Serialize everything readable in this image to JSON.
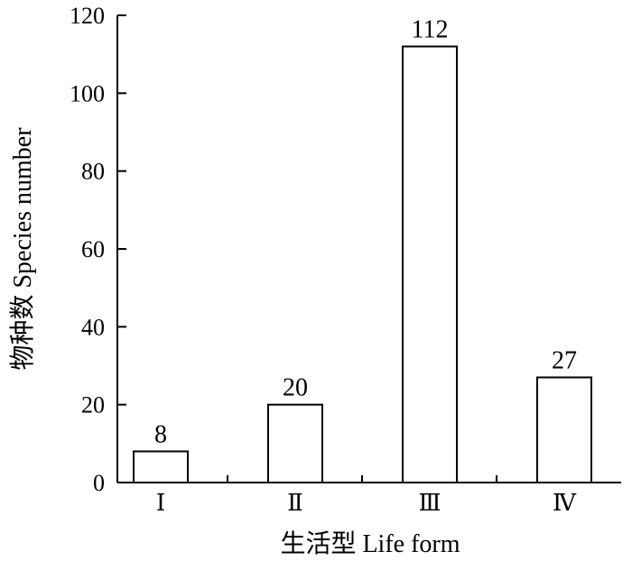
{
  "chart_data": {
    "type": "bar",
    "categories": [
      "Ⅰ",
      "Ⅱ",
      "Ⅲ",
      "Ⅳ"
    ],
    "values": [
      8,
      20,
      112,
      27
    ],
    "data_labels": [
      "8",
      "20",
      "112",
      "27"
    ],
    "title": "",
    "xlabel": "生活型 Life form",
    "ylabel": "物种数 Species number",
    "ylim": [
      0,
      120
    ],
    "yticks": [
      0,
      20,
      40,
      60,
      80,
      100,
      120
    ],
    "grid": false,
    "legend": "none",
    "bar_fill": "#ffffff",
    "bar_stroke": "#000000"
  }
}
